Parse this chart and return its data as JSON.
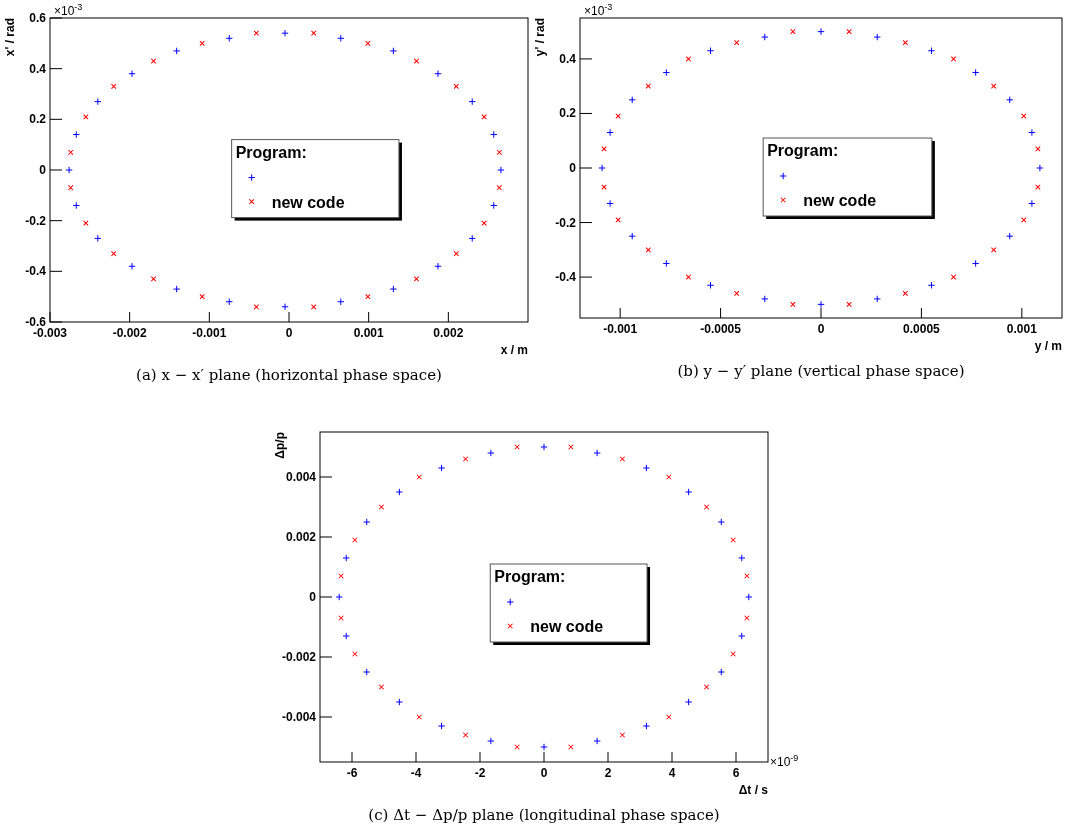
{
  "chart_data": [
    {
      "type": "scatter",
      "title": "(a) x − x′ plane (horizontal phase space)",
      "xlabel": "x / m",
      "ylabel": "x' / rad",
      "legend_title": "Program:",
      "legend": "center",
      "marker": "cross",
      "grid": false,
      "annotations": [
        "×10$^{-3}$"
      ],
      "xlim": [
        -0.003,
        0.003
      ],
      "xticks": [
        -0.003,
        -0.002,
        -0.001,
        0,
        0.001,
        0.002
      ],
      "ylim": [
        -0.6,
        0.6
      ],
      "yticks": [
        -0.6,
        -0.4,
        -0.2,
        0,
        0.2,
        0.4,
        0.6
      ],
      "series": [
        {
          "color": "#0000ff",
          "x": [
            0.00266,
            0.00257,
            0.0023,
            0.00187,
            0.00131,
            0.00065,
            -5e-05,
            -0.00075,
            -0.00141,
            -0.00197,
            -0.0024,
            -0.00267,
            -0.00276,
            -0.00267,
            -0.0024,
            -0.00197,
            -0.00141,
            -0.00075,
            -5e-05,
            0.00065,
            0.00131,
            0.00187,
            0.0023,
            0.00257
          ],
          "values": [
            0,
            0.14,
            0.27,
            0.38,
            0.47,
            0.52,
            0.54,
            0.52,
            0.47,
            0.38,
            0.27,
            0.14,
            0,
            -0.14,
            -0.27,
            -0.38,
            -0.47,
            -0.52,
            -0.54,
            -0.52,
            -0.47,
            -0.38,
            -0.27,
            -0.14
          ]
        },
        {
          "name": "new code",
          "color": "#ff0000",
          "x": [
            0.00264,
            0.00245,
            0.0021,
            0.0016,
            0.00099,
            0.00031,
            -0.00041,
            -0.00109,
            -0.0017,
            -0.0022,
            -0.00255,
            -0.00274,
            -0.00274,
            -0.00255,
            -0.0022,
            -0.0017,
            -0.00109,
            -0.00041,
            0.00031,
            0.00099,
            0.0016,
            0.0021,
            0.00245,
            0.00264
          ],
          "values": [
            0.07,
            0.21,
            0.33,
            0.43,
            0.5,
            0.54,
            0.54,
            0.5,
            0.43,
            0.33,
            0.21,
            0.07,
            -0.07,
            -0.21,
            -0.33,
            -0.43,
            -0.5,
            -0.54,
            -0.54,
            -0.5,
            -0.43,
            -0.33,
            -0.21,
            -0.07
          ]
        }
      ]
    },
    {
      "type": "scatter",
      "title": "(b) y − y′ plane (vertical phase space)",
      "xlabel": "y / m",
      "ylabel": "y' / rad",
      "legend_title": "Program:",
      "legend": "center",
      "marker": "cross",
      "grid": false,
      "annotations": [
        "×10$^{-3}$"
      ],
      "xlim": [
        -0.0012,
        0.0012
      ],
      "xticks": [
        -0.001,
        -0.0005,
        0,
        0.0005,
        0.001
      ],
      "ylim": [
        -0.55,
        0.55
      ],
      "yticks": [
        -0.4,
        -0.2,
        0,
        0.2,
        0.4
      ],
      "series": [
        {
          "color": "#0000ff",
          "x": [
            0.00109,
            0.00105,
            0.00094,
            0.00077,
            0.00055,
            0.00028,
            0,
            -0.00028,
            -0.00055,
            -0.00077,
            -0.00094,
            -0.00105,
            -0.00109,
            -0.00105,
            -0.00094,
            -0.00077,
            -0.00055,
            -0.00028,
            0,
            0.00028,
            0.00055,
            0.00077,
            0.00094,
            0.00105
          ],
          "values": [
            0,
            0.13,
            0.25,
            0.35,
            0.43,
            0.48,
            0.5,
            0.48,
            0.43,
            0.35,
            0.25,
            0.13,
            0,
            -0.13,
            -0.25,
            -0.35,
            -0.43,
            -0.48,
            -0.5,
            -0.48,
            -0.43,
            -0.35,
            -0.25,
            -0.13
          ]
        },
        {
          "name": "new code",
          "color": "#ff0000",
          "x": [
            0.00108,
            0.00101,
            0.00086,
            0.00066,
            0.00042,
            0.00014,
            -0.00014,
            -0.00042,
            -0.00066,
            -0.00086,
            -0.00101,
            -0.00108,
            -0.00108,
            -0.00101,
            -0.00086,
            -0.00066,
            -0.00042,
            -0.00014,
            0.00014,
            0.00042,
            0.00066,
            0.00086,
            0.00101,
            0.00108
          ],
          "values": [
            0.07,
            0.19,
            0.3,
            0.4,
            0.46,
            0.5,
            0.5,
            0.46,
            0.4,
            0.3,
            0.19,
            0.07,
            -0.07,
            -0.19,
            -0.3,
            -0.4,
            -0.46,
            -0.5,
            -0.5,
            -0.46,
            -0.4,
            -0.3,
            -0.19,
            -0.07
          ]
        }
      ]
    },
    {
      "type": "scatter",
      "title": "(c) Δt − Δp/p plane (longitudinal phase space)",
      "xlabel": "Δt / s",
      "ylabel": "Δp/p",
      "legend_title": "Program:",
      "legend": "center",
      "marker": "cross",
      "grid": false,
      "annotations": [
        "×10$^{-9}$"
      ],
      "xlim": [
        -7,
        7
      ],
      "xticks": [
        -6,
        -4,
        -2,
        0,
        2,
        4,
        6
      ],
      "ylim": [
        -0.0055,
        0.0055
      ],
      "yticks": [
        -0.004,
        -0.002,
        0,
        0.002,
        0.004
      ],
      "series": [
        {
          "color": "#0000ff",
          "x": [
            6.4,
            6.18,
            5.54,
            4.52,
            3.2,
            1.66,
            0,
            -1.66,
            -3.2,
            -4.52,
            -5.54,
            -6.18,
            -6.4,
            -6.18,
            -5.54,
            -4.52,
            -3.2,
            -1.66,
            0,
            1.66,
            3.2,
            4.52,
            5.54,
            6.18
          ],
          "values": [
            0,
            0.0013,
            0.0025,
            0.0035,
            0.0043,
            0.0048,
            0.005,
            0.0048,
            0.0043,
            0.0035,
            0.0025,
            0.0013,
            0,
            -0.0013,
            -0.0025,
            -0.0035,
            -0.0043,
            -0.0048,
            -0.005,
            -0.0048,
            -0.0043,
            -0.0035,
            -0.0025,
            -0.0013
          ]
        },
        {
          "name": "new code",
          "color": "#ff0000",
          "x": [
            6.34,
            5.91,
            5.08,
            3.9,
            2.45,
            0.84,
            -0.84,
            -2.45,
            -3.9,
            -5.08,
            -5.91,
            -6.34,
            -6.34,
            -5.91,
            -5.08,
            -3.9,
            -2.45,
            -0.84,
            0.84,
            2.45,
            3.9,
            5.08,
            5.91,
            6.34
          ],
          "values": [
            0.0007,
            0.0019,
            0.003,
            0.004,
            0.0046,
            0.005,
            0.005,
            0.0046,
            0.004,
            0.003,
            0.0019,
            0.0007,
            -0.0007,
            -0.0019,
            -0.003,
            -0.004,
            -0.0046,
            -0.005,
            -0.005,
            -0.0046,
            -0.004,
            -0.003,
            -0.0019,
            -0.0007
          ]
        }
      ]
    }
  ]
}
